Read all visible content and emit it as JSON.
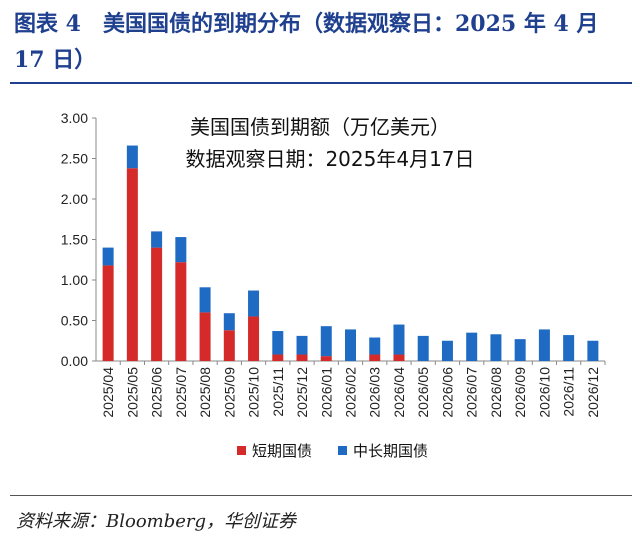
{
  "figure_title": "图表 4　美国国债的到期分布（数据观察日：2025 年 4 月 17 日）",
  "source_text": "资料来源：Bloomberg，华创证券",
  "chart_data": {
    "type": "bar",
    "stacked": true,
    "annotation_lines": [
      "美国国债到期额（万亿美元）",
      "数据观察日期：2025年4月17日"
    ],
    "categories": [
      "2025/04",
      "2025/05",
      "2025/06",
      "2025/07",
      "2025/08",
      "2025/09",
      "2025/10",
      "2025/11",
      "2025/12",
      "2026/01",
      "2026/02",
      "2026/03",
      "2026/04",
      "2026/05",
      "2026/06",
      "2026/07",
      "2026/08",
      "2026/09",
      "2026/10",
      "2026/11",
      "2026/12"
    ],
    "ylim": [
      0,
      3
    ],
    "yticks": [
      "0.00",
      "0.50",
      "1.00",
      "1.50",
      "2.00",
      "2.50",
      "3.00"
    ],
    "series": [
      {
        "name": "短期国债",
        "color": "#d42a2a",
        "values": [
          1.18,
          2.38,
          1.4,
          1.22,
          0.6,
          0.38,
          0.55,
          0.08,
          0.08,
          0.06,
          0.0,
          0.08,
          0.08,
          0,
          0,
          0,
          0,
          0,
          0,
          0,
          0
        ]
      },
      {
        "name": "中长期国债",
        "color": "#1f6bc4",
        "values": [
          0.22,
          0.28,
          0.2,
          0.31,
          0.31,
          0.21,
          0.32,
          0.29,
          0.23,
          0.37,
          0.39,
          0.21,
          0.37,
          0.31,
          0.25,
          0.35,
          0.33,
          0.27,
          0.39,
          0.32,
          0.25
        ]
      }
    ],
    "legend_position": "bottom",
    "grid": false
  }
}
